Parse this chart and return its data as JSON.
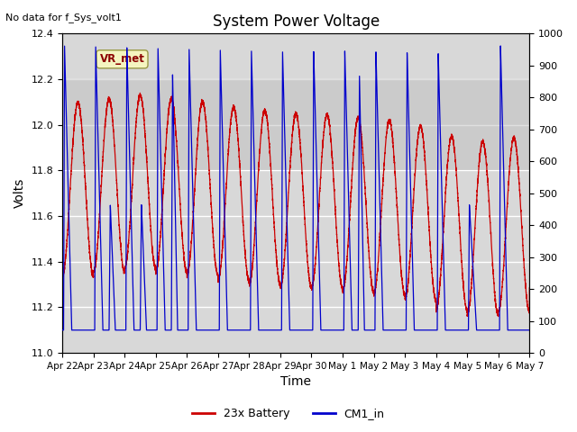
{
  "title": "System Power Voltage",
  "no_data_text": "No data for f_Sys_volt1",
  "xlabel": "Time",
  "ylabel": "Volts",
  "ylim_left": [
    11.0,
    12.4
  ],
  "ylim_right": [
    0,
    1000
  ],
  "yticks_left": [
    11.0,
    11.2,
    11.4,
    11.6,
    11.8,
    12.0,
    12.2,
    12.4
  ],
  "yticks_right": [
    0,
    100,
    200,
    300,
    400,
    500,
    600,
    700,
    800,
    900,
    1000
  ],
  "background_color": "#ffffff",
  "plot_bg_color": "#d8d8d8",
  "grid_color": "#ffffff",
  "shaded_band": [
    11.8,
    12.2
  ],
  "legend_entries": [
    "23x Battery",
    "CM1_in"
  ],
  "legend_colors": [
    "#cc0000",
    "#0000cc"
  ],
  "vr_met_label": "VR_met",
  "xlim": [
    0,
    15
  ],
  "tick_labels": [
    "Apr 22",
    "Apr 23",
    "Apr 24",
    "Apr 25",
    "Apr 26",
    "Apr 27",
    "Apr 28",
    "Apr 29",
    "Apr 30",
    "May 1",
    "May 2",
    "May 3",
    "May 4",
    "May 5",
    "May 6",
    "May 7"
  ],
  "tick_positions": [
    0,
    1,
    2,
    3,
    4,
    5,
    6,
    7,
    8,
    9,
    10,
    11,
    12,
    13,
    14,
    15
  ]
}
